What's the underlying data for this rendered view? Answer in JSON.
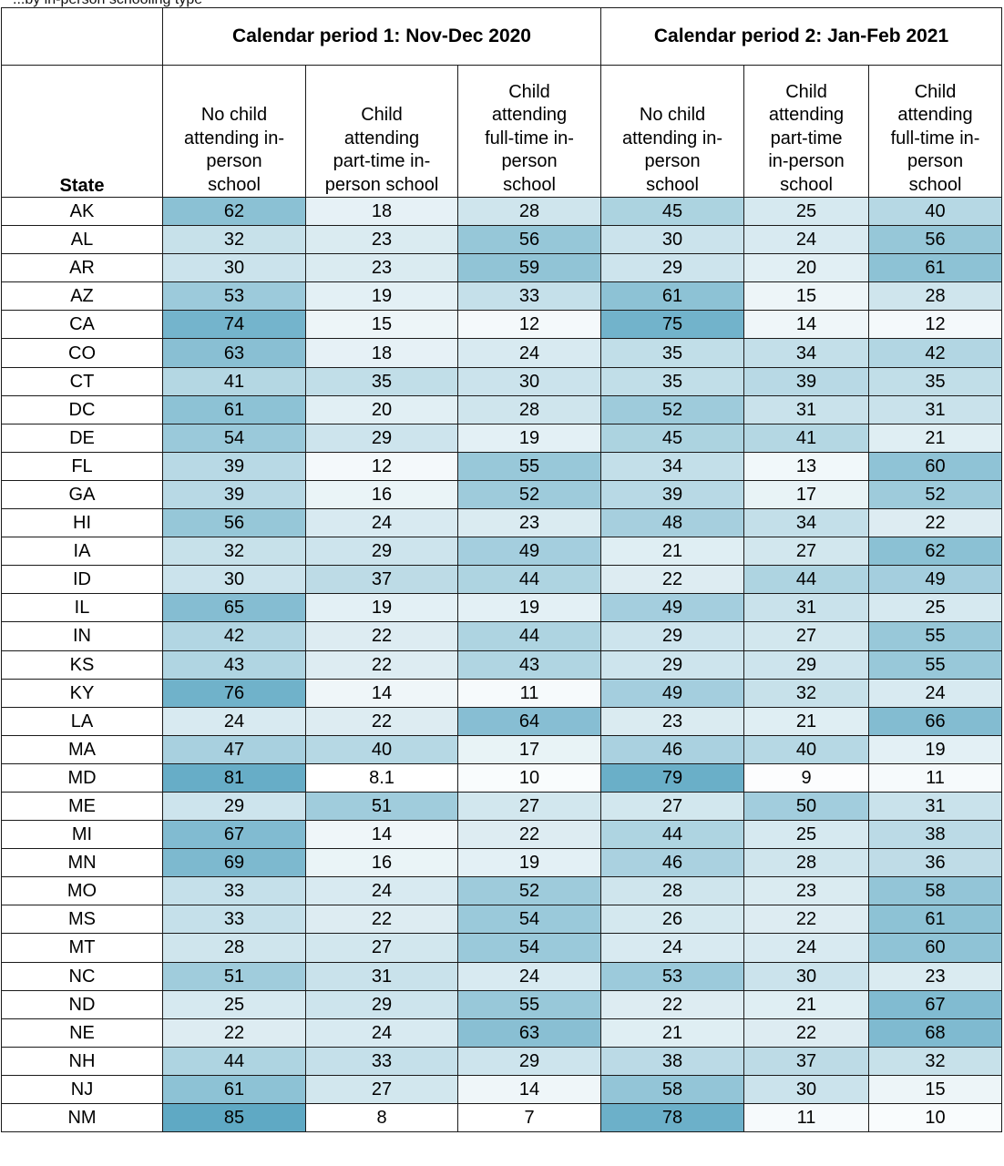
{
  "caption": "...by in-person schooling type",
  "header": {
    "state_label": "State",
    "period1": "Calendar period 1: Nov-Dec 2020",
    "period2": "Calendar period 2: Jan-Feb 2021",
    "sub_columns": [
      [
        "No child",
        "attending in-",
        "person",
        "school"
      ],
      [
        "Child",
        "attending",
        "part-time in-",
        "person school"
      ],
      [
        "Child",
        "attending",
        "full-time in-",
        "person",
        "school"
      ],
      [
        "No child",
        "attending in-",
        "person",
        "school"
      ],
      [
        "Child",
        "attending",
        "part-time",
        "in-person",
        "school"
      ],
      [
        "Child",
        "attending",
        "full-time in-",
        "person",
        "school"
      ]
    ]
  },
  "colors": {
    "low": "#ffffff",
    "high": "#5fa9c4",
    "border": "#1a1a1a"
  },
  "rows": [
    {
      "state": "AK",
      "values": [
        "62",
        "18",
        "28",
        "45",
        "25",
        "40"
      ]
    },
    {
      "state": "AL",
      "values": [
        "32",
        "23",
        "56",
        "30",
        "24",
        "56"
      ]
    },
    {
      "state": "AR",
      "values": [
        "30",
        "23",
        "59",
        "29",
        "20",
        "61"
      ]
    },
    {
      "state": "AZ",
      "values": [
        "53",
        "19",
        "33",
        "61",
        "15",
        "28"
      ]
    },
    {
      "state": "CA",
      "values": [
        "74",
        "15",
        "12",
        "75",
        "14",
        "12"
      ]
    },
    {
      "state": "CO",
      "values": [
        "63",
        "18",
        "24",
        "35",
        "34",
        "42"
      ]
    },
    {
      "state": "CT",
      "values": [
        "41",
        "35",
        "30",
        "35",
        "39",
        "35"
      ]
    },
    {
      "state": "DC",
      "values": [
        "61",
        "20",
        "28",
        "52",
        "31",
        "31"
      ]
    },
    {
      "state": "DE",
      "values": [
        "54",
        "29",
        "19",
        "45",
        "41",
        "21"
      ]
    },
    {
      "state": "FL",
      "values": [
        "39",
        "12",
        "55",
        "34",
        "13",
        "60"
      ]
    },
    {
      "state": "GA",
      "values": [
        "39",
        "16",
        "52",
        "39",
        "17",
        "52"
      ]
    },
    {
      "state": "HI",
      "values": [
        "56",
        "24",
        "23",
        "48",
        "34",
        "22"
      ]
    },
    {
      "state": "IA",
      "values": [
        "32",
        "29",
        "49",
        "21",
        "27",
        "62"
      ]
    },
    {
      "state": "ID",
      "values": [
        "30",
        "37",
        "44",
        "22",
        "44",
        "49"
      ]
    },
    {
      "state": "IL",
      "values": [
        "65",
        "19",
        "19",
        "49",
        "31",
        "25"
      ]
    },
    {
      "state": "IN",
      "values": [
        "42",
        "22",
        "44",
        "29",
        "27",
        "55"
      ]
    },
    {
      "state": "KS",
      "values": [
        "43",
        "22",
        "43",
        "29",
        "29",
        "55"
      ]
    },
    {
      "state": "KY",
      "values": [
        "76",
        "14",
        "11",
        "49",
        "32",
        "24"
      ]
    },
    {
      "state": "LA",
      "values": [
        "24",
        "22",
        "64",
        "23",
        "21",
        "66"
      ]
    },
    {
      "state": "MA",
      "values": [
        "47",
        "40",
        "17",
        "46",
        "40",
        "19"
      ]
    },
    {
      "state": "MD",
      "values": [
        "81",
        "8.1",
        "10",
        "79",
        "9",
        "11"
      ]
    },
    {
      "state": "ME",
      "values": [
        "29",
        "51",
        "27",
        "27",
        "50",
        "31"
      ]
    },
    {
      "state": "MI",
      "values": [
        "67",
        "14",
        "22",
        "44",
        "25",
        "38"
      ]
    },
    {
      "state": "MN",
      "values": [
        "69",
        "16",
        "19",
        "46",
        "28",
        "36"
      ]
    },
    {
      "state": "MO",
      "values": [
        "33",
        "24",
        "52",
        "28",
        "23",
        "58"
      ]
    },
    {
      "state": "MS",
      "values": [
        "33",
        "22",
        "54",
        "26",
        "22",
        "61"
      ]
    },
    {
      "state": "MT",
      "values": [
        "28",
        "27",
        "54",
        "24",
        "24",
        "60"
      ]
    },
    {
      "state": "NC",
      "values": [
        "51",
        "31",
        "24",
        "53",
        "30",
        "23"
      ]
    },
    {
      "state": "ND",
      "values": [
        "25",
        "29",
        "55",
        "22",
        "21",
        "67"
      ]
    },
    {
      "state": "NE",
      "values": [
        "22",
        "24",
        "63",
        "21",
        "22",
        "68"
      ]
    },
    {
      "state": "NH",
      "values": [
        "44",
        "33",
        "29",
        "38",
        "37",
        "32"
      ]
    },
    {
      "state": "NJ",
      "values": [
        "61",
        "27",
        "14",
        "58",
        "30",
        "15"
      ]
    },
    {
      "state": "NM",
      "values": [
        "85",
        "8",
        "7",
        "78",
        "11",
        "10"
      ]
    }
  ]
}
